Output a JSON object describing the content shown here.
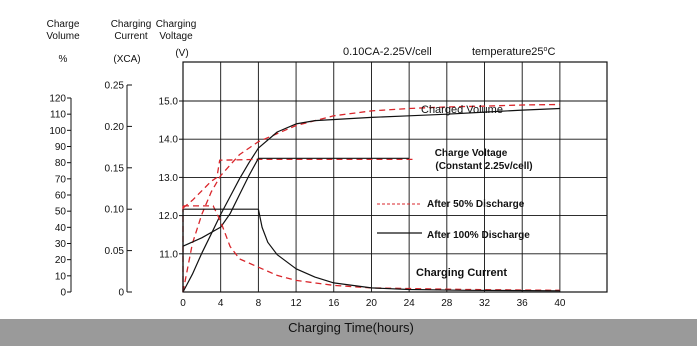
{
  "chart_data": {
    "type": "line",
    "title": "0.10CA-2.25V/cell",
    "temperature_prefix": "temperature25",
    "temperature_degree": "o",
    "temperature_unit": "C",
    "xlabel": "Charging Time(hours)",
    "xlim": [
      0,
      45
    ],
    "x_ticks": [
      0,
      4,
      8,
      12,
      16,
      20,
      24,
      28,
      32,
      36,
      40
    ],
    "grid": true,
    "axes": {
      "volume": {
        "header": [
          "Charge",
          "Volume"
        ],
        "unit": "%",
        "range": [
          0,
          120
        ],
        "ticks": [
          0,
          10,
          20,
          30,
          40,
          50,
          60,
          70,
          80,
          90,
          100,
          110,
          120
        ]
      },
      "current": {
        "header": [
          "Charging",
          "Current"
        ],
        "unit": "(XCA)",
        "range": [
          0,
          0.25
        ],
        "ticks": [
          0,
          0.05,
          0.1,
          0.15,
          0.2,
          0.25
        ],
        "tick_labels": [
          "0",
          "0.05",
          "0.10",
          "0.15",
          "0.20",
          "0.25"
        ]
      },
      "voltage": {
        "header": [
          "Charging",
          "Voltage"
        ],
        "unit": "(V)",
        "range": [
          10.0,
          15.0
        ],
        "ticks": [
          11.0,
          12.0,
          13.0,
          14.0,
          15.0
        ],
        "tick_labels": [
          "11.0",
          "12.0",
          "13.0",
          "14.0",
          "15.0"
        ]
      }
    },
    "annotations": {
      "charged_volume": "Charged Volume",
      "charge_voltage": [
        "Charge Voltage",
        "(Constant 2.25v/cell)"
      ],
      "charging_current": "Charging Current"
    },
    "legend": [
      {
        "label": "After 50% Discharge",
        "style": "dashed",
        "color": "#d9262b"
      },
      {
        "label": "After 100% Discharge",
        "style": "solid",
        "color": "#111111"
      }
    ],
    "series": [
      {
        "name": "Charged Volume",
        "legend": 0,
        "axis": "volume",
        "points": [
          [
            0,
            0
          ],
          [
            1,
            30
          ],
          [
            2,
            48
          ],
          [
            3,
            62
          ],
          [
            4,
            72
          ],
          [
            6,
            85
          ],
          [
            8,
            93
          ],
          [
            12,
            103
          ],
          [
            16,
            109
          ],
          [
            20,
            112
          ],
          [
            24,
            113.5
          ],
          [
            28,
            114.5
          ],
          [
            32,
            115
          ],
          [
            36,
            115.7
          ],
          [
            40,
            116
          ]
        ]
      },
      {
        "name": "Charged Volume",
        "legend": 1,
        "axis": "volume",
        "points": [
          [
            0,
            0
          ],
          [
            1,
            11
          ],
          [
            2,
            24
          ],
          [
            3,
            36
          ],
          [
            4,
            48
          ],
          [
            5,
            59
          ],
          [
            6,
            70
          ],
          [
            7,
            80
          ],
          [
            8,
            89
          ],
          [
            10,
            99
          ],
          [
            12,
            104
          ],
          [
            14,
            106
          ],
          [
            20,
            108
          ],
          [
            24,
            109
          ],
          [
            28,
            110
          ],
          [
            32,
            111.3
          ],
          [
            36,
            112.5
          ],
          [
            40,
            113.5
          ]
        ]
      },
      {
        "name": "Charge Voltage",
        "legend": 0,
        "axis": "voltage",
        "points": [
          [
            0,
            12.2
          ],
          [
            1,
            12.4
          ],
          [
            2,
            12.65
          ],
          [
            3,
            12.9
          ],
          [
            3.6,
            13.0
          ],
          [
            3.9,
            13.45
          ],
          [
            8,
            13.47
          ],
          [
            24.5,
            13.47
          ]
        ]
      },
      {
        "name": "Charge Voltage",
        "legend": 1,
        "axis": "voltage",
        "points": [
          [
            0,
            11.2
          ],
          [
            2,
            11.42
          ],
          [
            4,
            11.7
          ],
          [
            5,
            12.05
          ],
          [
            6,
            12.55
          ],
          [
            7,
            13.05
          ],
          [
            8,
            13.5
          ],
          [
            10,
            13.5
          ],
          [
            24,
            13.5
          ]
        ]
      },
      {
        "name": "Charging Current",
        "legend": 0,
        "axis": "current",
        "points": [
          [
            0,
            0.104
          ],
          [
            3.2,
            0.104
          ],
          [
            4,
            0.085
          ],
          [
            5,
            0.055
          ],
          [
            6,
            0.04
          ],
          [
            8,
            0.03
          ],
          [
            10,
            0.02
          ],
          [
            12,
            0.014
          ],
          [
            16,
            0.008
          ],
          [
            20,
            0.005
          ],
          [
            30,
            0.003
          ],
          [
            40,
            0.002
          ]
        ]
      },
      {
        "name": "Charging Current",
        "legend": 1,
        "axis": "current",
        "points": [
          [
            0,
            0.1
          ],
          [
            8,
            0.1
          ],
          [
            8.4,
            0.078
          ],
          [
            9,
            0.06
          ],
          [
            10,
            0.045
          ],
          [
            12,
            0.028
          ],
          [
            14,
            0.018
          ],
          [
            16,
            0.011
          ],
          [
            20,
            0.005
          ],
          [
            24,
            0.003
          ],
          [
            30,
            0.002
          ],
          [
            40,
            0.0015
          ]
        ]
      },
      {
        "name": "Charging Current (initial step)",
        "legend": 0,
        "axis": "current",
        "points": [
          [
            0,
            0
          ],
          [
            0,
            0.104
          ]
        ]
      },
      {
        "name": "Charging Current (initial step)",
        "legend": 1,
        "axis": "current",
        "points": [
          [
            0,
            0
          ],
          [
            0,
            0.1
          ]
        ]
      }
    ]
  }
}
